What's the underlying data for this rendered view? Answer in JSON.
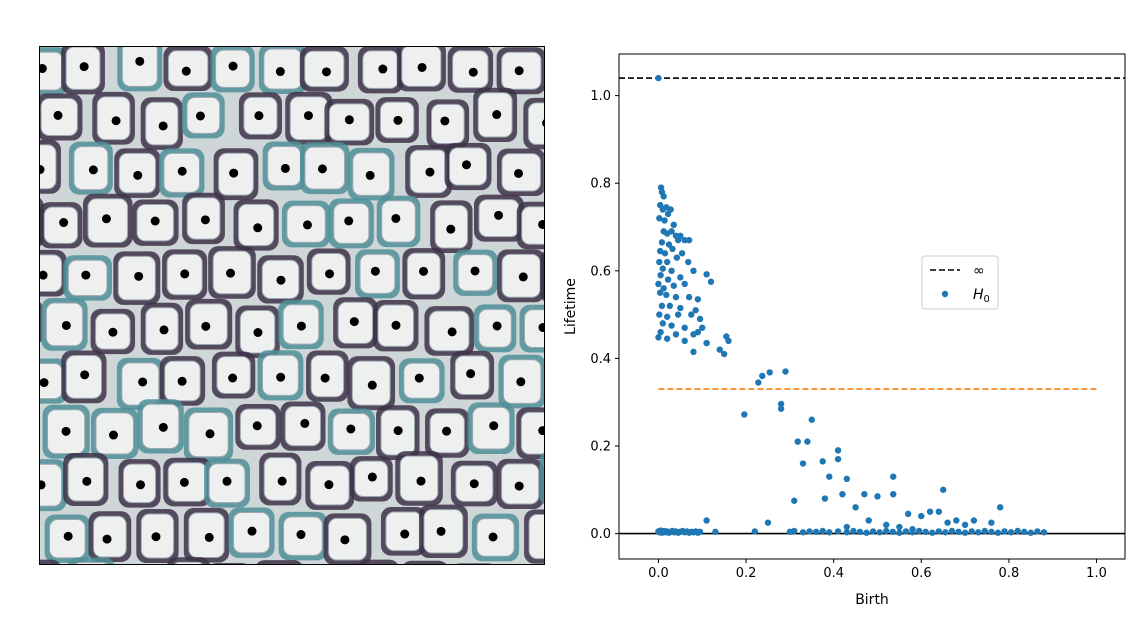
{
  "left_panel": {
    "image": "histology cross-section of plant tissue cells (stained cell walls) with black dots marking cell centers",
    "wall_color": "#3d3148",
    "wall_tint": "#4f8f98",
    "cell_fill": "#eef0f0",
    "marker_color": "#000000"
  },
  "chart_data": {
    "type": "scatter",
    "xlabel": "Birth",
    "ylabel": "Lifetime",
    "xlim": [
      -0.09,
      1.065
    ],
    "ylim": [
      -0.058,
      1.095
    ],
    "xticks": [
      "0.0",
      "0.2",
      "0.4",
      "0.6",
      "0.8",
      "1.0"
    ],
    "yticks": [
      "0.0",
      "0.2",
      "0.4",
      "0.6",
      "0.8",
      "1.0"
    ],
    "grid": false,
    "legend": {
      "placement": "center-right",
      "entries": [
        {
          "label": "∞",
          "style": "dashed-line",
          "color": "#000000"
        },
        {
          "label": "H",
          "subscript": "0",
          "style": "marker",
          "color": "#1f77b4"
        }
      ]
    },
    "lines": [
      {
        "name": "infinity",
        "y": 1.04,
        "style": "dashed",
        "color": "#000000",
        "span": "full"
      },
      {
        "name": "threshold",
        "y": 0.33,
        "x_range": [
          0.0,
          1.0
        ],
        "style": "dashed",
        "color": "#ff7f0e"
      },
      {
        "name": "zero",
        "y": 0.0,
        "style": "solid",
        "color": "#000000",
        "span": "full"
      }
    ],
    "series": [
      {
        "name": "H0",
        "color": "#1f77b4",
        "points": [
          [
            0.0,
            1.04
          ],
          [
            0.006,
            0.79
          ],
          [
            0.008,
            0.78
          ],
          [
            0.012,
            0.77
          ],
          [
            0.004,
            0.75
          ],
          [
            0.01,
            0.74
          ],
          [
            0.018,
            0.745
          ],
          [
            0.022,
            0.73
          ],
          [
            0.028,
            0.74
          ],
          [
            0.002,
            0.72
          ],
          [
            0.014,
            0.715
          ],
          [
            0.035,
            0.705
          ],
          [
            0.012,
            0.69
          ],
          [
            0.02,
            0.685
          ],
          [
            0.03,
            0.69
          ],
          [
            0.04,
            0.68
          ],
          [
            0.05,
            0.68
          ],
          [
            0.008,
            0.665
          ],
          [
            0.024,
            0.66
          ],
          [
            0.045,
            0.67
          ],
          [
            0.06,
            0.67
          ],
          [
            0.07,
            0.67
          ],
          [
            0.004,
            0.645
          ],
          [
            0.015,
            0.64
          ],
          [
            0.032,
            0.65
          ],
          [
            0.054,
            0.64
          ],
          [
            0.002,
            0.62
          ],
          [
            0.02,
            0.62
          ],
          [
            0.042,
            0.63
          ],
          [
            0.068,
            0.62
          ],
          [
            0.01,
            0.605
          ],
          [
            0.03,
            0.6
          ],
          [
            0.005,
            0.59
          ],
          [
            0.022,
            0.58
          ],
          [
            0.05,
            0.585
          ],
          [
            0.08,
            0.6
          ],
          [
            0.11,
            0.592
          ],
          [
            0.0,
            0.57
          ],
          [
            0.012,
            0.56
          ],
          [
            0.035,
            0.566
          ],
          [
            0.06,
            0.57
          ],
          [
            0.12,
            0.575
          ],
          [
            0.004,
            0.55
          ],
          [
            0.018,
            0.545
          ],
          [
            0.04,
            0.54
          ],
          [
            0.07,
            0.54
          ],
          [
            0.09,
            0.535
          ],
          [
            0.008,
            0.52
          ],
          [
            0.026,
            0.52
          ],
          [
            0.05,
            0.515
          ],
          [
            0.085,
            0.51
          ],
          [
            0.002,
            0.5
          ],
          [
            0.02,
            0.495
          ],
          [
            0.045,
            0.5
          ],
          [
            0.075,
            0.5
          ],
          [
            0.095,
            0.49
          ],
          [
            0.01,
            0.48
          ],
          [
            0.03,
            0.475
          ],
          [
            0.06,
            0.47
          ],
          [
            0.1,
            0.47
          ],
          [
            0.005,
            0.46
          ],
          [
            0.04,
            0.455
          ],
          [
            0.08,
            0.455
          ],
          [
            0.09,
            0.46
          ],
          [
            0.0,
            0.448
          ],
          [
            0.02,
            0.445
          ],
          [
            0.06,
            0.44
          ],
          [
            0.11,
            0.435
          ],
          [
            0.155,
            0.45
          ],
          [
            0.16,
            0.44
          ],
          [
            0.14,
            0.42
          ],
          [
            0.15,
            0.41
          ],
          [
            0.08,
            0.415
          ],
          [
            0.228,
            0.345
          ],
          [
            0.237,
            0.36
          ],
          [
            0.254,
            0.368
          ],
          [
            0.29,
            0.37
          ],
          [
            0.196,
            0.272
          ],
          [
            0.28,
            0.296
          ],
          [
            0.28,
            0.285
          ],
          [
            0.35,
            0.26
          ],
          [
            0.318,
            0.21
          ],
          [
            0.34,
            0.21
          ],
          [
            0.33,
            0.16
          ],
          [
            0.375,
            0.165
          ],
          [
            0.41,
            0.19
          ],
          [
            0.41,
            0.17
          ],
          [
            0.39,
            0.13
          ],
          [
            0.43,
            0.125
          ],
          [
            0.38,
            0.08
          ],
          [
            0.42,
            0.09
          ],
          [
            0.47,
            0.09
          ],
          [
            0.5,
            0.085
          ],
          [
            0.536,
            0.13
          ],
          [
            0.536,
            0.09
          ],
          [
            0.45,
            0.06
          ],
          [
            0.31,
            0.075
          ],
          [
            0.65,
            0.1
          ],
          [
            0.62,
            0.05
          ],
          [
            0.64,
            0.05
          ],
          [
            0.57,
            0.045
          ],
          [
            0.6,
            0.04
          ],
          [
            0.78,
            0.06
          ],
          [
            0.11,
            0.03
          ],
          [
            0.25,
            0.025
          ],
          [
            0.48,
            0.03
          ],
          [
            0.52,
            0.02
          ],
          [
            0.68,
            0.03
          ],
          [
            0.7,
            0.02
          ],
          [
            0.72,
            0.03
          ],
          [
            0.76,
            0.025
          ],
          [
            0.66,
            0.025
          ],
          [
            0.58,
            0.01
          ],
          [
            0.55,
            0.015
          ],
          [
            0.43,
            0.015
          ],
          [
            0.0,
            0.005
          ],
          [
            0.002,
            0.003
          ],
          [
            0.005,
            0.007
          ],
          [
            0.008,
            0.002
          ],
          [
            0.01,
            0.004
          ],
          [
            0.013,
            0.006
          ],
          [
            0.016,
            0.003
          ],
          [
            0.02,
            0.005
          ],
          [
            0.024,
            0.002
          ],
          [
            0.028,
            0.004
          ],
          [
            0.032,
            0.006
          ],
          [
            0.036,
            0.003
          ],
          [
            0.04,
            0.005
          ],
          [
            0.045,
            0.002
          ],
          [
            0.05,
            0.004
          ],
          [
            0.055,
            0.006
          ],
          [
            0.06,
            0.003
          ],
          [
            0.065,
            0.005
          ],
          [
            0.07,
            0.002
          ],
          [
            0.075,
            0.004
          ],
          [
            0.08,
            0.003
          ],
          [
            0.085,
            0.005
          ],
          [
            0.09,
            0.002
          ],
          [
            0.095,
            0.004
          ],
          [
            0.13,
            0.004
          ],
          [
            0.22,
            0.005
          ],
          [
            0.3,
            0.004
          ],
          [
            0.31,
            0.006
          ],
          [
            0.33,
            0.003
          ],
          [
            0.345,
            0.005
          ],
          [
            0.36,
            0.004
          ],
          [
            0.375,
            0.006
          ],
          [
            0.39,
            0.003
          ],
          [
            0.41,
            0.005
          ],
          [
            0.43,
            0.003
          ],
          [
            0.445,
            0.006
          ],
          [
            0.46,
            0.004
          ],
          [
            0.475,
            0.002
          ],
          [
            0.49,
            0.005
          ],
          [
            0.505,
            0.003
          ],
          [
            0.52,
            0.006
          ],
          [
            0.535,
            0.004
          ],
          [
            0.55,
            0.002
          ],
          [
            0.565,
            0.005
          ],
          [
            0.58,
            0.003
          ],
          [
            0.595,
            0.006
          ],
          [
            0.61,
            0.004
          ],
          [
            0.625,
            0.002
          ],
          [
            0.64,
            0.005
          ],
          [
            0.655,
            0.003
          ],
          [
            0.67,
            0.006
          ],
          [
            0.685,
            0.004
          ],
          [
            0.7,
            0.002
          ],
          [
            0.715,
            0.005
          ],
          [
            0.73,
            0.003
          ],
          [
            0.745,
            0.006
          ],
          [
            0.76,
            0.004
          ],
          [
            0.775,
            0.002
          ],
          [
            0.79,
            0.005
          ],
          [
            0.805,
            0.003
          ],
          [
            0.82,
            0.006
          ],
          [
            0.835,
            0.004
          ],
          [
            0.85,
            0.002
          ],
          [
            0.865,
            0.005
          ],
          [
            0.88,
            0.003
          ]
        ]
      }
    ]
  }
}
